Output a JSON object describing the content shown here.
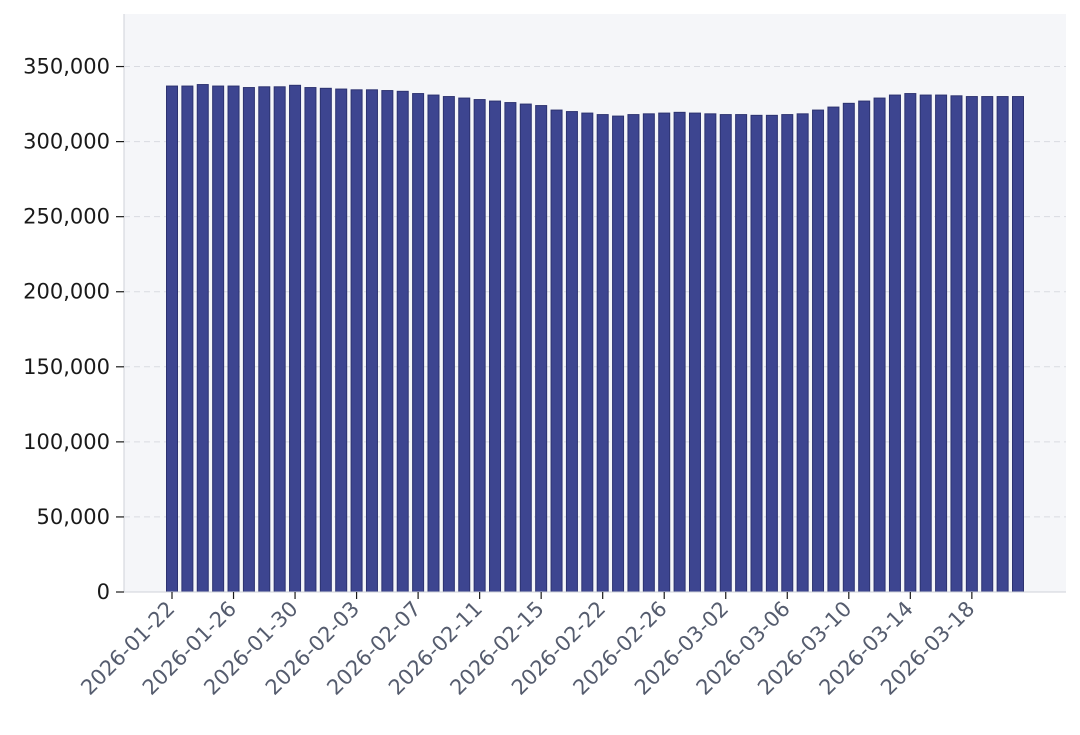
{
  "chart_data": {
    "type": "bar",
    "title": "",
    "xlabel": "",
    "ylabel": "",
    "ylim": [
      0,
      385000
    ],
    "yticks": [
      0,
      50000,
      100000,
      150000,
      200000,
      250000,
      300000,
      350000
    ],
    "ytick_labels": [
      "0",
      "50,000",
      "100,000",
      "150,000",
      "200,000",
      "250,000",
      "300,000",
      "350,000"
    ],
    "grid": true,
    "bar_color": "#3d4590",
    "background_color": "#f5f6f9",
    "grid_color": "#d9dbe1",
    "x_ticks": [
      {
        "label": "2026-01-22",
        "index": 0
      },
      {
        "label": "2026-01-26",
        "index": 4
      },
      {
        "label": "2026-01-30",
        "index": 8
      },
      {
        "label": "2026-02-03",
        "index": 12
      },
      {
        "label": "2026-02-07",
        "index": 16
      },
      {
        "label": "2026-02-11",
        "index": 20
      },
      {
        "label": "2026-02-15",
        "index": 24
      },
      {
        "label": "2026-02-22",
        "index": 28
      },
      {
        "label": "2026-02-26",
        "index": 32
      },
      {
        "label": "2026-03-02",
        "index": 36
      },
      {
        "label": "2026-03-06",
        "index": 40
      },
      {
        "label": "2026-03-10",
        "index": 44
      },
      {
        "label": "2026-03-14",
        "index": 48
      },
      {
        "label": "2026-03-18",
        "index": 52
      }
    ],
    "values": [
      337000,
      337000,
      338000,
      337000,
      337000,
      336000,
      336500,
      336500,
      337500,
      336000,
      335500,
      335000,
      334500,
      334500,
      334000,
      333500,
      332000,
      331000,
      330000,
      329000,
      328000,
      327000,
      326000,
      325000,
      324000,
      321000,
      320000,
      319000,
      318000,
      317000,
      318000,
      318500,
      319000,
      319500,
      319000,
      318500,
      318000,
      318000,
      317500,
      317500,
      318000,
      318500,
      321000,
      323000,
      325500,
      327000,
      329000,
      331000,
      332000,
      331000,
      331000,
      330500,
      330000,
      330000,
      330000,
      330000
    ]
  }
}
